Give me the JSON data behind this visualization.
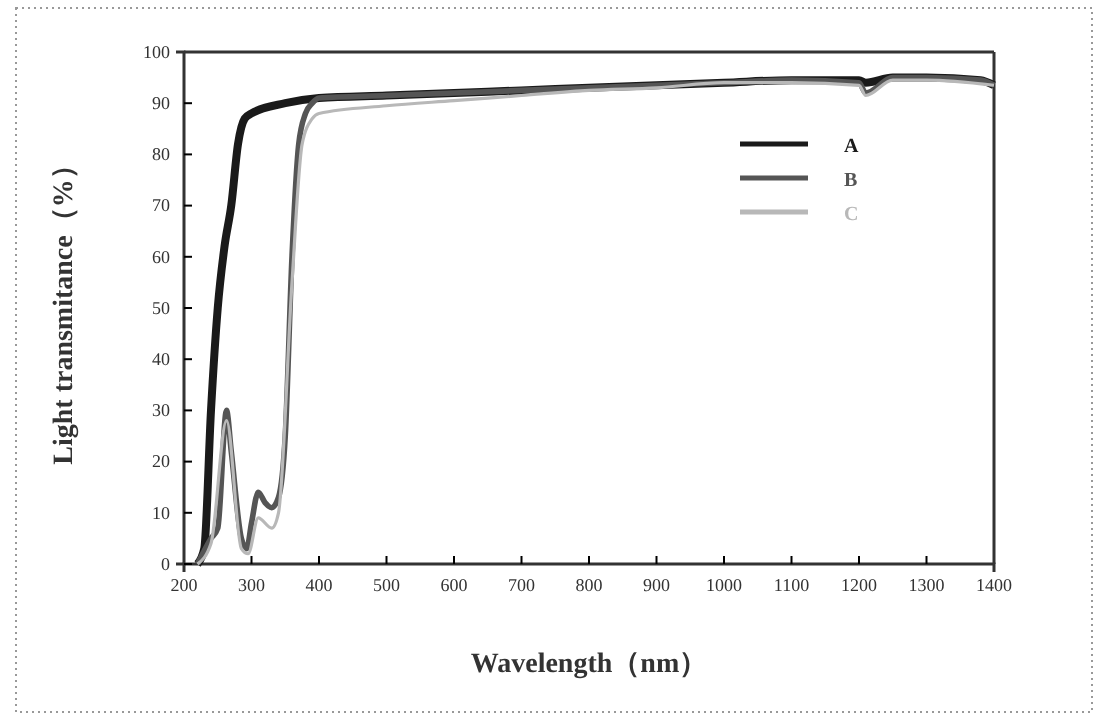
{
  "chart_data": {
    "type": "line",
    "xlabel": "Wavelength（nm）",
    "ylabel": "Light transmitance（%）",
    "xlim": [
      200,
      1400
    ],
    "ylim": [
      0,
      100
    ],
    "xticks": [
      200,
      300,
      400,
      500,
      600,
      700,
      800,
      900,
      1000,
      1100,
      1200,
      1300,
      1400
    ],
    "yticks": [
      0,
      10,
      20,
      30,
      40,
      50,
      60,
      70,
      80,
      90,
      100
    ],
    "grid": false,
    "legend": "top right",
    "line_style": "solid",
    "marker": "none",
    "series": [
      {
        "name": "A",
        "color": "#1a1a1a",
        "x": [
          220,
          230,
          240,
          250,
          260,
          270,
          280,
          290,
          300,
          350,
          400,
          500,
          600,
          700,
          800,
          900,
          1000,
          1100,
          1200,
          1210,
          1250,
          1300,
          1380,
          1400
        ],
        "values": [
          0,
          3,
          30,
          50,
          62,
          70,
          82,
          87,
          88,
          90,
          91,
          91.5,
          92,
          92.5,
          93,
          93.5,
          94,
          94.5,
          94.5,
          94,
          95,
          95,
          94.5,
          93.5
        ]
      },
      {
        "name": "B",
        "color": "#555555",
        "x": [
          220,
          240,
          250,
          263,
          270,
          285,
          293,
          300,
          310,
          320,
          330,
          340,
          350,
          360,
          370,
          380,
          390,
          400,
          500,
          600,
          700,
          800,
          900,
          1000,
          1100,
          1200,
          1210,
          1250,
          1300,
          1380,
          1400
        ],
        "values": [
          0,
          5,
          7,
          30,
          22,
          5,
          3,
          8,
          14,
          12,
          11,
          13,
          25,
          60,
          82,
          88,
          90,
          91,
          91.5,
          92,
          92.5,
          93,
          93.5,
          94,
          94.5,
          94,
          92,
          95,
          95,
          94.5,
          93.5
        ]
      },
      {
        "name": "C",
        "color": "#b8b8b8",
        "x": [
          220,
          240,
          263,
          285,
          295,
          310,
          330,
          340,
          360,
          375,
          390,
          400,
          500,
          600,
          700,
          800,
          900,
          1000,
          1100,
          1200,
          1210,
          1250,
          1300,
          1400
        ],
        "values": [
          0,
          4,
          28,
          3,
          2,
          9,
          7,
          10,
          55,
          82,
          87,
          88,
          89.5,
          90.5,
          91.5,
          92.5,
          93,
          94,
          94,
          93.5,
          91.5,
          94.5,
          94.5,
          93.5
        ]
      }
    ]
  }
}
